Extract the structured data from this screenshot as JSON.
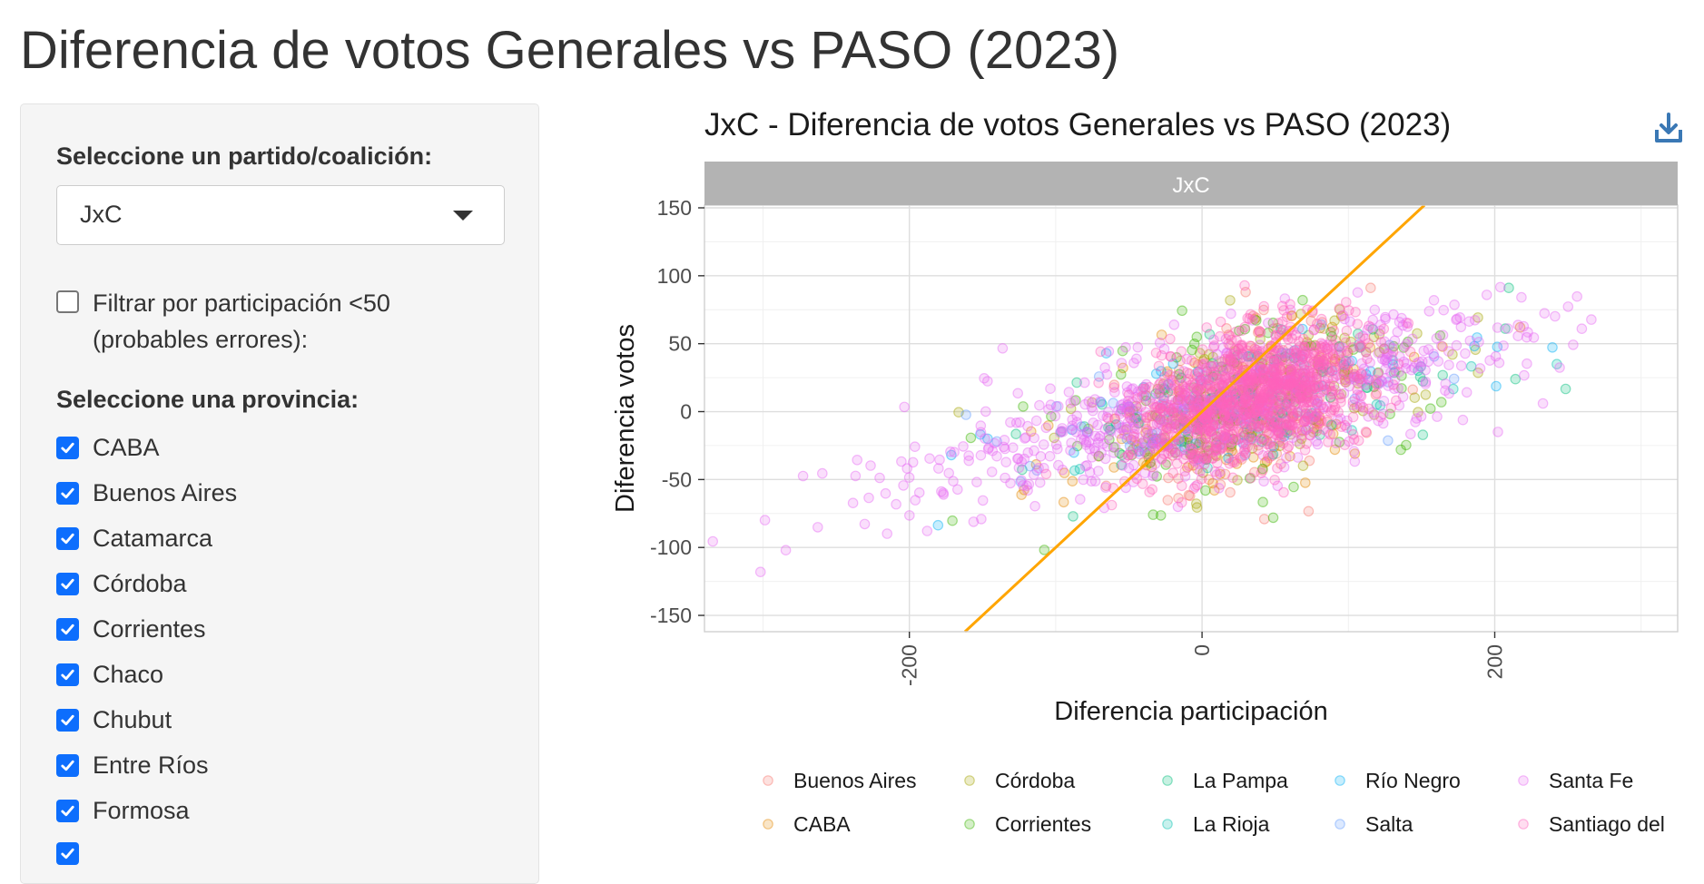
{
  "page": {
    "title": "Diferencia de votos Generales vs PASO (2023)"
  },
  "sidebar": {
    "party_label": "Seleccione un partido/coalición:",
    "party_selected": "JxC",
    "filter_label_line1": "Filtrar por participación <50",
    "filter_label_line2": "(probables errores):",
    "filter_checked": false,
    "province_label": "Seleccione una provincia:",
    "provinces": [
      {
        "label": "CABA",
        "checked": true
      },
      {
        "label": "Buenos Aires",
        "checked": true
      },
      {
        "label": "Catamarca",
        "checked": true
      },
      {
        "label": "Córdoba",
        "checked": true
      },
      {
        "label": "Corrientes",
        "checked": true
      },
      {
        "label": "Chaco",
        "checked": true
      },
      {
        "label": "Chubut",
        "checked": true
      },
      {
        "label": "Entre Ríos",
        "checked": true
      },
      {
        "label": "Formosa",
        "checked": true
      }
    ]
  },
  "chart": {
    "title": "JxC - Diferencia de votos Generales vs PASO (2023)",
    "download_icon": "download-icon"
  },
  "chart_data": {
    "type": "scatter",
    "title": "JxC - Diferencia de votos Generales vs PASO (2023)",
    "facet_label": "JxC",
    "xlabel": "Diferencia participación",
    "ylabel": "Diferencia votos",
    "xlim": [
      -340,
      325
    ],
    "ylim": [
      -162,
      152
    ],
    "x_ticks": [
      -200,
      0,
      200
    ],
    "y_ticks": [
      150,
      100,
      50,
      0,
      -50,
      -100,
      -150
    ],
    "grid": true,
    "legend_position": "bottom",
    "reference_line": {
      "slope": 1,
      "intercept": 0,
      "color": "#FFA500"
    },
    "series": [
      {
        "name": "Buenos Aires",
        "color": "#F8766D",
        "approx_points": 220
      },
      {
        "name": "CABA",
        "color": "#E58700",
        "approx_points": 120
      },
      {
        "name": "Córdoba",
        "color": "#A3A500",
        "approx_points": 140
      },
      {
        "name": "Corrientes",
        "color": "#39B600",
        "approx_points": 130
      },
      {
        "name": "La Pampa",
        "color": "#00BF7D",
        "approx_points": 60
      },
      {
        "name": "La Rioja",
        "color": "#00C0AF",
        "approx_points": 50
      },
      {
        "name": "Río Negro",
        "color": "#00B0F6",
        "approx_points": 60
      },
      {
        "name": "Salta",
        "color": "#619CFF",
        "approx_points": 60
      },
      {
        "name": "Santa Fe",
        "color": "#E76BF3",
        "approx_points": 700
      },
      {
        "name": "Santiago del",
        "color": "#FF62BC",
        "approx_points": 900
      }
    ]
  }
}
